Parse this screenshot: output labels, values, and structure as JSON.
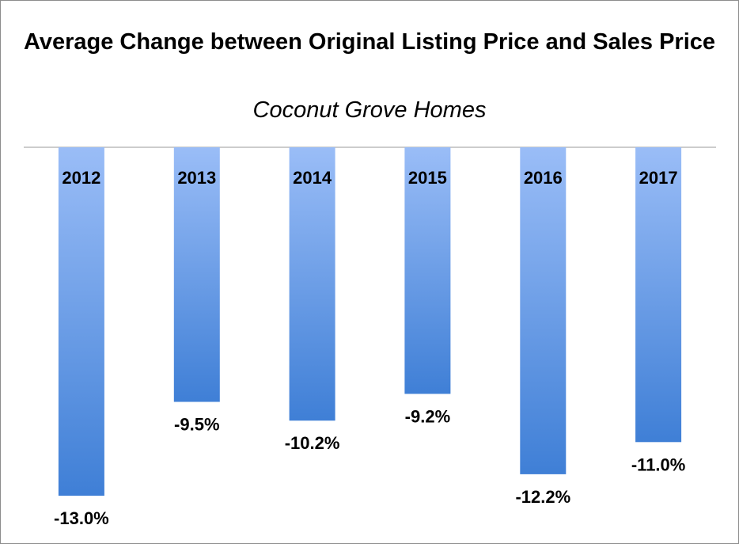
{
  "chart_data": {
    "type": "bar",
    "title": "Average Change between Original Listing Price and Sales Price",
    "subtitle": "Coconut Grove Homes",
    "categories": [
      "2012",
      "2013",
      "2014",
      "2015",
      "2016",
      "2017"
    ],
    "values": [
      -13.0,
      -9.5,
      -10.2,
      -9.2,
      -12.2,
      -11.0
    ],
    "value_labels": [
      "-13.0%",
      "-9.5%",
      "-10.2%",
      "-9.2%",
      "-12.2%",
      "-11.0%"
    ],
    "ylim": [
      -13.0,
      0
    ],
    "grid": false,
    "legend": "none",
    "bar_color_top": "#9abdf7",
    "bar_color_bottom": "#3f7fd6"
  }
}
